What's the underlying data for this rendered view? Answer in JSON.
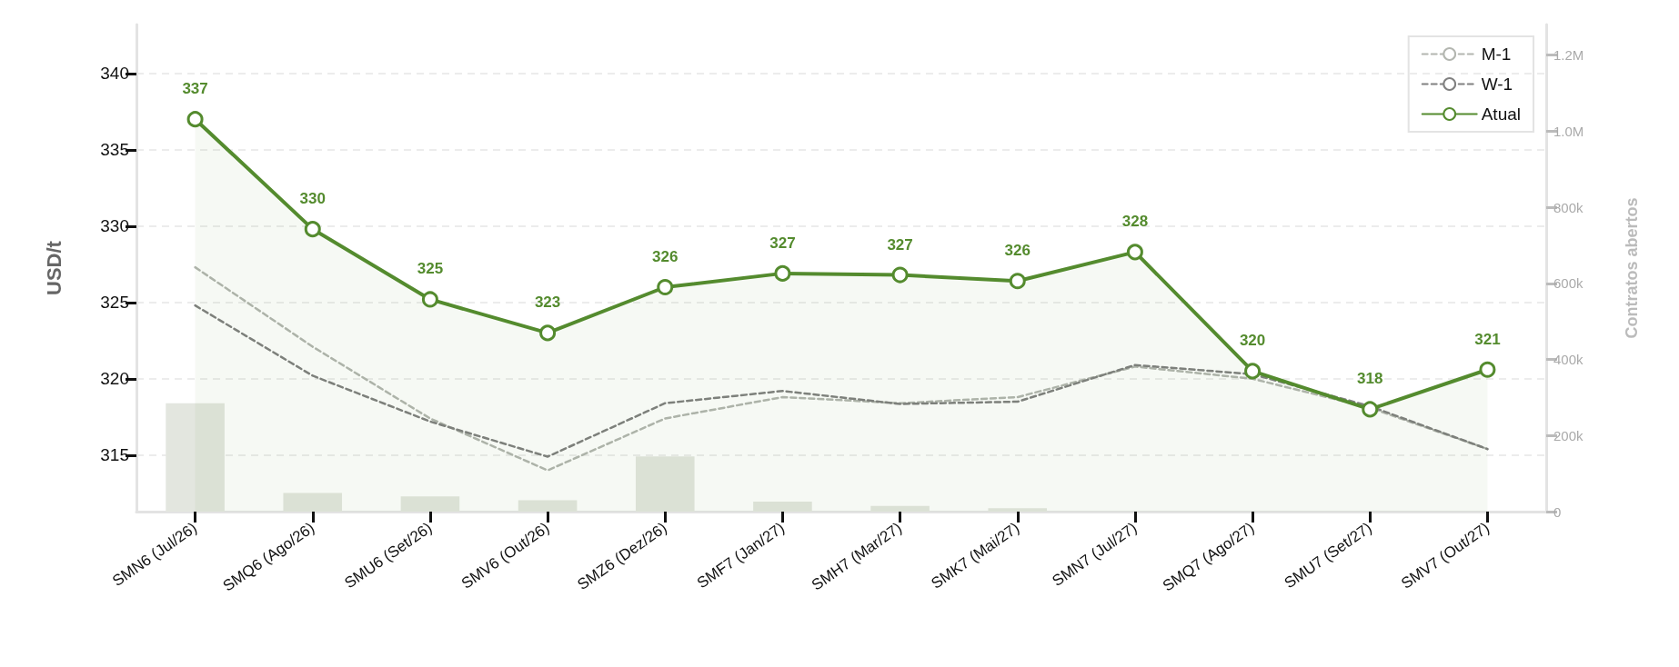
{
  "chart_data": {
    "type": "line",
    "ylabel": "USD/t",
    "y2label": "Contratos abertos",
    "categories": [
      "SMN6 (Jul/26)",
      "SMQ6 (Ago/26)",
      "SMU6 (Set/26)",
      "SMV6 (Out/26)",
      "SMZ6 (Dez/26)",
      "SMF7 (Jan/27)",
      "SMH7 (Mar/27)",
      "SMK7 (Mai/27)",
      "SMN7 (Jul/27)",
      "SMQ7 (Ago/27)",
      "SMU7 (Set/27)",
      "SMV7 (Out/27)"
    ],
    "series": [
      {
        "type": "bar",
        "axis": "y2",
        "color": "#e3e6df",
        "values": [
          285000,
          49000,
          40000,
          30000,
          145000,
          26000,
          15000,
          9000,
          null,
          0,
          0,
          0
        ]
      },
      {
        "name": "M-1",
        "color": "#b3b6b0",
        "line_style": "dashed",
        "marker": "none",
        "values": [
          327.3,
          322.1,
          317.4,
          314.0,
          317.4,
          318.8,
          318.4,
          318.8,
          320.8,
          320.0,
          318.1,
          315.4
        ]
      },
      {
        "name": "W-1",
        "color": "#808080",
        "line_style": "dashed",
        "marker": "none",
        "values": [
          324.8,
          320.2,
          317.2,
          314.9,
          318.4,
          319.2,
          318.35,
          318.5,
          320.9,
          320.3,
          318.2,
          315.4
        ]
      },
      {
        "name": "Atual",
        "type": "area",
        "color": "#548b2e",
        "line_style": "solid",
        "marker": "circle",
        "values": [
          337.0,
          329.8,
          325.2,
          323.0,
          326.0,
          326.9,
          326.8,
          326.4,
          328.3,
          320.5,
          318.0,
          320.6
        ],
        "value_labels": [
          "337",
          "330",
          "325",
          "323",
          "326",
          "327",
          "327",
          "326",
          "328",
          "320",
          "318",
          "321"
        ]
      }
    ],
    "ylim": [
      311.3,
      343.2
    ],
    "yticks": [
      315,
      320,
      325,
      330,
      335,
      340
    ],
    "y2lim": [
      0,
      1280000
    ],
    "y2ticks": [
      0,
      {
        "value": 200000,
        "label": "200k"
      },
      {
        "value": 400000,
        "label": "400k"
      },
      {
        "value": 600000,
        "label": "600k"
      },
      {
        "value": 800000,
        "label": "800k"
      },
      {
        "value": 1000000,
        "label": "1.0M"
      },
      {
        "value": 1200000,
        "label": "1.2M"
      }
    ],
    "grid": "y",
    "legend": "top right"
  }
}
